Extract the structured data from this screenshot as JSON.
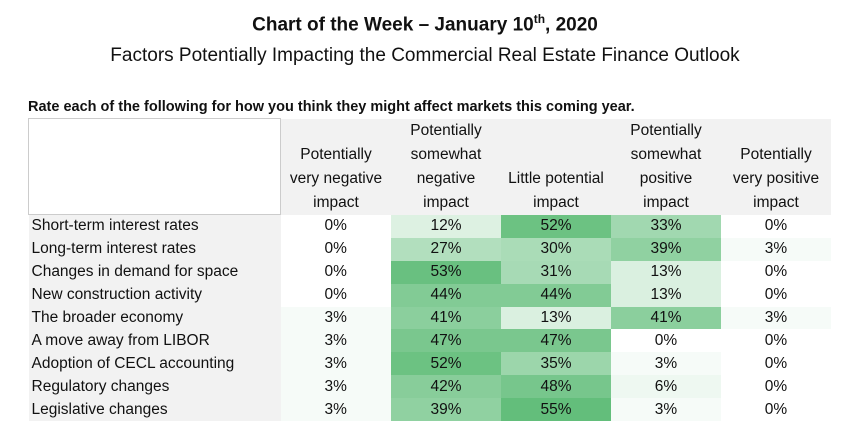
{
  "header": {
    "title": "Chart of the Week – January 10",
    "title_sup": "th",
    "title_end": ", 2020",
    "subtitle": "Factors Potentially Impacting the Commercial Real Estate Finance Outlook"
  },
  "question": "Rate each of the following for how you think they might affect markets this coming year.",
  "table": {
    "columns": [
      "Potentially very negative impact",
      "Potentially somewhat negative impact",
      "Little potential impact",
      "Potentially somewhat positive impact",
      "Potentially very positive impact"
    ],
    "rows": [
      [
        "Short-term interest rates",
        "0%",
        "12%",
        "52%",
        "33%",
        "0%"
      ],
      [
        "Long-term interest rates",
        "0%",
        "27%",
        "30%",
        "39%",
        "3%"
      ],
      [
        "Changes in demand for space",
        "0%",
        "53%",
        "31%",
        "13%",
        "0%"
      ],
      [
        "New construction activity",
        "0%",
        "44%",
        "44%",
        "13%",
        "0%"
      ],
      [
        "The broader economy",
        "3%",
        "41%",
        "13%",
        "41%",
        "3%"
      ],
      [
        "A move away from LIBOR",
        "3%",
        "47%",
        "47%",
        "0%",
        "0%"
      ],
      [
        "Adoption of CECL accounting",
        "3%",
        "52%",
        "35%",
        "3%",
        "0%"
      ],
      [
        "Regulatory changes",
        "3%",
        "42%",
        "48%",
        "6%",
        "0%"
      ],
      [
        "Legislative changes",
        "3%",
        "39%",
        "55%",
        "3%",
        "0%"
      ]
    ]
  }
}
